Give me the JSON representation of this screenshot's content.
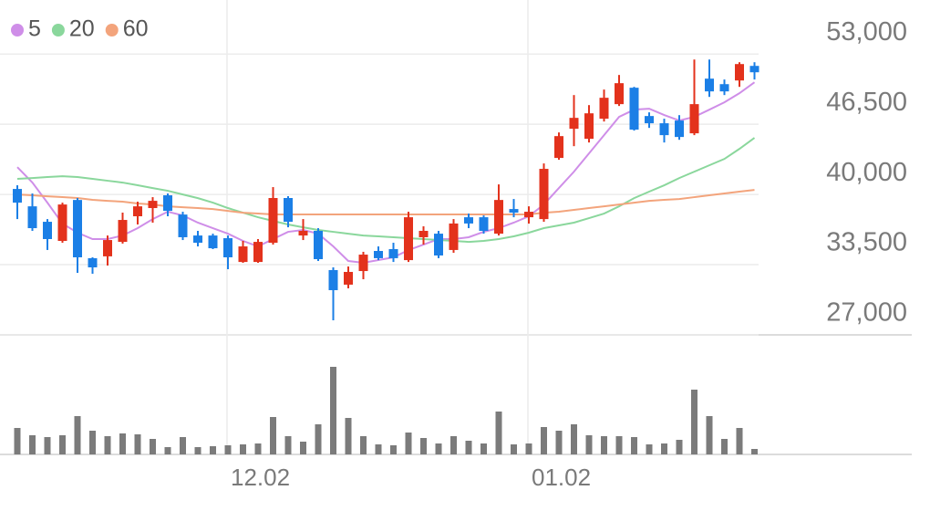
{
  "chart_data": {
    "type": "candlestick",
    "categories": [
      null,
      null,
      null,
      null,
      null,
      null,
      null,
      null,
      null,
      null,
      null,
      null,
      null,
      null,
      "12.02",
      null,
      null,
      null,
      null,
      null,
      null,
      null,
      null,
      null,
      null,
      null,
      null,
      null,
      null,
      null,
      null,
      null,
      null,
      null,
      "01.02",
      null,
      null,
      null,
      null,
      null,
      null,
      null,
      null,
      null,
      null,
      null,
      null,
      null,
      null,
      null
    ],
    "open": [
      40510,
      38900,
      37470,
      35700,
      39490,
      34100,
      34270,
      35610,
      37980,
      38740,
      39920,
      38140,
      36200,
      36200,
      35950,
      33750,
      33750,
      35530,
      39670,
      36200,
      36630,
      33000,
      31650,
      32910,
      34770,
      34940,
      33920,
      36040,
      36370,
      34860,
      37890,
      37890,
      36370,
      38650,
      37890,
      37720,
      43380,
      46080,
      45150,
      47010,
      48360,
      49880,
      47260,
      46590,
      46840,
      45660,
      50720,
      50210,
      50550,
      51900
    ],
    "high": [
      40850,
      40090,
      37720,
      39240,
      39670,
      34180,
      36200,
      38320,
      39330,
      39750,
      40090,
      38400,
      36630,
      36370,
      36200,
      35700,
      35870,
      40680,
      39840,
      37720,
      36880,
      33250,
      33330,
      34690,
      35190,
      35530,
      38400,
      37050,
      36630,
      37720,
      38230,
      38060,
      40930,
      39580,
      38900,
      42870,
      45740,
      49200,
      48270,
      49710,
      51060,
      49960,
      47600,
      47010,
      47340,
      52490,
      52490,
      50640,
      52240,
      52240
    ],
    "low": [
      37720,
      36630,
      34860,
      35530,
      32740,
      32660,
      33420,
      35450,
      37220,
      37390,
      37980,
      35780,
      35190,
      34940,
      33080,
      33670,
      33670,
      35360,
      36960,
      35780,
      33840,
      28350,
      31310,
      32150,
      33920,
      33750,
      33750,
      35360,
      34100,
      34600,
      36880,
      36370,
      36200,
      37890,
      37300,
      37470,
      43210,
      44470,
      44810,
      46750,
      48190,
      45910,
      46160,
      44810,
      45060,
      45490,
      49030,
      49200,
      49960,
      50640
    ],
    "close": [
      39240,
      36880,
      35870,
      39070,
      34180,
      33250,
      35780,
      37640,
      38900,
      39410,
      38480,
      36040,
      35530,
      35020,
      34180,
      35190,
      35610,
      39670,
      37470,
      36630,
      34010,
      31140,
      32830,
      34430,
      34100,
      34100,
      37890,
      36630,
      34350,
      37310,
      37310,
      36630,
      39490,
      38320,
      38400,
      42370,
      45400,
      47090,
      47510,
      48950,
      50300,
      46000,
      46590,
      45490,
      45320,
      48360,
      49540,
      49540,
      52070,
      51310
    ],
    "up_color": "#e3321c",
    "down_color": "#1b7fe6",
    "moving_averages": [
      {
        "name": "5",
        "color": "#cf8ee8",
        "values": [
          42530,
          41100,
          39240,
          37300,
          36460,
          35870,
          35870,
          36200,
          36880,
          37720,
          38400,
          38060,
          37390,
          36880,
          36370,
          35700,
          35190,
          35870,
          36540,
          36710,
          36370,
          35190,
          33840,
          33670,
          33930,
          34180,
          34850,
          35360,
          35870,
          35870,
          36040,
          36540,
          36880,
          37390,
          37980,
          39070,
          40590,
          42110,
          43800,
          45490,
          47180,
          47850,
          47940,
          47350,
          46840,
          47180,
          47850,
          48530,
          49370,
          50380
        ]
      },
      {
        "name": "20",
        "color": "#8ad79c",
        "values": [
          41440,
          41520,
          41610,
          41690,
          41610,
          41440,
          41270,
          41100,
          40850,
          40590,
          40340,
          40000,
          39660,
          39240,
          38740,
          38310,
          37890,
          37550,
          37220,
          36960,
          36710,
          36540,
          36370,
          36200,
          36120,
          36040,
          35950,
          35870,
          35780,
          35700,
          35610,
          35700,
          35870,
          36120,
          36460,
          36880,
          37140,
          37390,
          37810,
          38230,
          38900,
          39660,
          40260,
          40850,
          41520,
          42110,
          42700,
          43290,
          44220,
          45240
        ]
      },
      {
        "name": "60",
        "color": "#f3a47c",
        "values": [
          40000,
          39920,
          39830,
          39750,
          39670,
          39500,
          39410,
          39330,
          39160,
          39070,
          38900,
          38820,
          38740,
          38650,
          38480,
          38310,
          38230,
          38150,
          38150,
          38150,
          38150,
          38150,
          38150,
          38150,
          38150,
          38150,
          38150,
          38150,
          38150,
          38150,
          38150,
          38150,
          38150,
          38150,
          38150,
          38310,
          38400,
          38570,
          38740,
          38900,
          39070,
          39240,
          39410,
          39500,
          39580,
          39750,
          39920,
          40090,
          40260,
          40420
        ]
      }
    ],
    "volume": {
      "color": "#7b7b7b",
      "values": [
        29,
        21,
        19,
        21,
        42,
        26,
        20,
        23,
        22,
        17,
        8,
        19,
        8,
        9,
        10,
        11,
        12,
        41,
        20,
        14,
        33,
        96,
        40,
        20,
        11,
        10,
        24,
        18,
        12,
        20,
        15,
        12,
        47,
        11,
        12,
        30,
        26,
        33,
        21,
        20,
        20,
        19,
        11,
        12,
        16,
        71,
        42,
        17,
        29,
        6
      ]
    },
    "ylim": [
      27000,
      58000
    ],
    "yticks": [
      {
        "value": 27000,
        "label": "27,000"
      },
      {
        "value": 33500,
        "label": "33,500"
      },
      {
        "value": 40000,
        "label": "40,000"
      },
      {
        "value": 46500,
        "label": "46,500"
      },
      {
        "value": 53000,
        "label": "53,000"
      }
    ],
    "grid": true
  }
}
